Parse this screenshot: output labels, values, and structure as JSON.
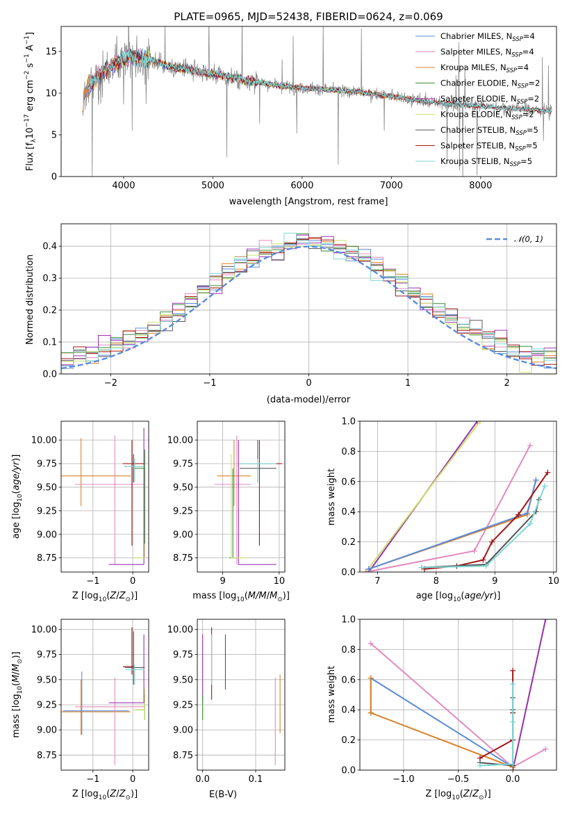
{
  "colors": {
    "chabrier_miles": "#5b8bd9",
    "salpeter_miles": "#e589bd",
    "kroupa_miles": "#d9822b",
    "chabrier_elodie": "#3a8a3a",
    "salpeter_elodie": "#9b30b0",
    "kroupa_elodie": "#c9e26a",
    "chabrier_stelib": "#555555",
    "salpeter_stelib": "#a11515",
    "kroupa_stelib": "#7fd6d6",
    "data": "#888888",
    "normal": "#5b8bd9"
  },
  "chart_data": [
    {
      "id": "spectrum",
      "type": "line",
      "title": "PLATE=0965, MJD=52438, FIBERID=0624, z=0.069",
      "xlabel": "wavelength [Angstrom, rest frame]",
      "ylabel_parts": [
        "Flux [f",
        "λ",
        "10",
        "−17",
        " erg cm",
        "−2",
        " s",
        "−1",
        " A",
        "−1",
        "]"
      ],
      "xlim": [
        3300,
        8850
      ],
      "ylim": [
        0,
        18
      ],
      "xticks": [
        4000,
        5000,
        6000,
        7000,
        8000
      ],
      "yticks": [
        0,
        5,
        10,
        15
      ],
      "legend": [
        {
          "name": "Chabrier MILES, N",
          "sub": "SSP",
          "tail": "=4",
          "color_key": "chabrier_miles"
        },
        {
          "name": "Salpeter MILES, N",
          "sub": "SSP",
          "tail": "=4",
          "color_key": "salpeter_miles"
        },
        {
          "name": "Kroupa MILES, N",
          "sub": "SSP",
          "tail": "=4",
          "color_key": "kroupa_miles"
        },
        {
          "name": "Chabrier ELODIE, N",
          "sub": "SSP",
          "tail": "=2",
          "color_key": "chabrier_elodie"
        },
        {
          "name": "Salpeter ELODIE, N",
          "sub": "SSP",
          "tail": "=2",
          "color_key": "salpeter_elodie"
        },
        {
          "name": "Kroupa ELODIE, N",
          "sub": "SSP",
          "tail": "=2",
          "color_key": "kroupa_elodie"
        },
        {
          "name": "Chabrier STELIB, N",
          "sub": "SSP",
          "tail": "=5",
          "color_key": "chabrier_stelib"
        },
        {
          "name": "Salpeter STELIB, N",
          "sub": "SSP",
          "tail": "=5",
          "color_key": "salpeter_stelib"
        },
        {
          "name": "Kroupa STELIB, N",
          "sub": "SSP",
          "tail": "=5",
          "color_key": "kroupa_stelib"
        }
      ],
      "continuum_anchors": {
        "x": [
          3550,
          3700,
          3900,
          4050,
          4300,
          4600,
          5000,
          5400,
          5800,
          6200,
          6600,
          7000,
          7400,
          7800,
          8200,
          8600,
          8800
        ],
        "y": [
          9.8,
          12.0,
          13.5,
          14.5,
          14.0,
          13.0,
          12.3,
          11.5,
          10.8,
          10.5,
          10.2,
          9.6,
          9.0,
          8.6,
          8.3,
          8.0,
          7.8
        ]
      }
    },
    {
      "id": "residuals",
      "type": "histogram",
      "xlabel": "(data-model)/error",
      "ylabel": "Normed distribution",
      "xlim": [
        -2.5,
        2.5
      ],
      "ylim": [
        0,
        0.47
      ],
      "xticks": [
        -2,
        -1,
        0,
        1,
        2
      ],
      "yticks": [
        0.0,
        0.1,
        0.2,
        0.3,
        0.4
      ],
      "legend": [
        {
          "name": "𝒩(0, 1)",
          "color_key": "normal",
          "style": "dashed"
        }
      ],
      "bins": 40
    },
    {
      "id": "age_vs_Z",
      "type": "errorbar",
      "xlabel_parts": [
        "Z [log",
        "10",
        "(Z/Z",
        "⊙",
        ")]"
      ],
      "ylabel_parts": [
        "age  [log",
        "10",
        "(age/yr)]"
      ],
      "xlim": [
        -1.8,
        0.4
      ],
      "ylim": [
        8.6,
        10.2
      ],
      "xticks": [
        -1,
        0
      ],
      "yticks": [
        8.75,
        9.0,
        9.25,
        9.5,
        9.75,
        10.0
      ],
      "points": [
        {
          "c": "kroupa_miles",
          "x": -1.3,
          "xlo": -1.8,
          "xhi": -0.05,
          "y": 9.62,
          "ylo": 9.3,
          "yhi": 10.02
        },
        {
          "c": "salpeter_miles",
          "x": -0.45,
          "xlo": -1.45,
          "xhi": 0.3,
          "y": 9.53,
          "ylo": 8.68,
          "yhi": 10.05
        },
        {
          "c": "salpeter_elodie",
          "x": 0.28,
          "xlo": -0.6,
          "xhi": 0.28,
          "y": 8.68,
          "ylo": 8.68,
          "yhi": 10.13
        },
        {
          "c": "salpeter_stelib",
          "x": -0.02,
          "xlo": -0.25,
          "xhi": 0.3,
          "y": 9.75,
          "ylo": 8.88,
          "yhi": 10.0
        },
        {
          "c": "chabrier_stelib",
          "x": 0.02,
          "xlo": -0.2,
          "xhi": 0.3,
          "y": 9.72,
          "ylo": 9.55,
          "yhi": 9.85
        },
        {
          "c": "kroupa_stelib",
          "x": 0.05,
          "xlo": -0.18,
          "xhi": 0.3,
          "y": 9.72,
          "ylo": 9.55,
          "yhi": 9.8
        },
        {
          "c": "kroupa_elodie",
          "x": 0.3,
          "xlo": 0.0,
          "xhi": 0.3,
          "y": 8.75,
          "ylo": 8.75,
          "yhi": 9.85
        },
        {
          "c": "chabrier_elodie",
          "x": 0.3,
          "xlo": 0.05,
          "xhi": 0.3,
          "y": 9.7,
          "ylo": 8.9,
          "yhi": 9.9
        }
      ]
    },
    {
      "id": "age_vs_mass",
      "type": "errorbar",
      "xlabel_parts": [
        "mass [log",
        "10",
        "(M/M",
        "⊙",
        ")]"
      ],
      "ylabel_parts": [],
      "xlim": [
        8.55,
        10.1
      ],
      "ylim": [
        8.6,
        10.2
      ],
      "xticks": [
        9,
        10
      ],
      "yticks": [
        8.75,
        9.0,
        9.25,
        9.5,
        9.75,
        10.0
      ],
      "points": [
        {
          "c": "kroupa_miles",
          "x": 9.2,
          "xlo": 8.9,
          "xhi": 9.5,
          "y": 9.62,
          "ylo": 9.3,
          "yhi": 10.0
        },
        {
          "c": "salpeter_miles",
          "x": 9.25,
          "xlo": 8.85,
          "xhi": 9.5,
          "y": 9.53,
          "ylo": 8.68,
          "yhi": 10.05
        },
        {
          "c": "salpeter_elodie",
          "x": 9.28,
          "xlo": 9.28,
          "xhi": 9.95,
          "y": 8.68,
          "ylo": 8.68,
          "yhi": 10.0
        },
        {
          "c": "chabrier_elodie",
          "x": 9.18,
          "xlo": 9.12,
          "xhi": 9.25,
          "y": 8.75,
          "ylo": 8.75,
          "yhi": 9.7
        },
        {
          "c": "kroupa_elodie",
          "x": 9.15,
          "xlo": 9.15,
          "xhi": 9.4,
          "y": 8.75,
          "ylo": 8.75,
          "yhi": 9.85
        },
        {
          "c": "salpeter_stelib",
          "x": 9.65,
          "xlo": 9.3,
          "xhi": 10.05,
          "y": 9.75,
          "ylo": 8.88,
          "yhi": 10.0
        },
        {
          "c": "chabrier_stelib",
          "x": 9.62,
          "xlo": 9.3,
          "xhi": 9.95,
          "y": 9.7,
          "ylo": 9.55,
          "yhi": 10.0
        },
        {
          "c": "kroupa_stelib",
          "x": 9.62,
          "xlo": 9.3,
          "xhi": 9.95,
          "y": 9.75,
          "ylo": 9.55,
          "yhi": 9.8
        }
      ]
    },
    {
      "id": "weight_vs_age",
      "type": "line",
      "xlabel_parts": [
        "age  [log",
        "10",
        "(age/yr)]"
      ],
      "ylabel": "mass weight",
      "xlim": [
        6.7,
        10.05
      ],
      "ylim": [
        0,
        1.0
      ],
      "xticks": [
        7,
        8,
        9,
        10
      ],
      "yticks": [
        0.0,
        0.2,
        0.4,
        0.6,
        0.8,
        1.0
      ],
      "series": [
        {
          "c": "salpeter_elodie",
          "x": [
            6.85,
            8.7
          ],
          "y": [
            0.0,
            1.0
          ]
        },
        {
          "c": "kroupa_elodie",
          "x": [
            6.8,
            8.75
          ],
          "y": [
            0.0,
            1.0
          ]
        },
        {
          "c": "salpeter_miles",
          "x": [
            6.8,
            8.65,
            9.6
          ],
          "y": [
            0.0,
            0.14,
            0.84
          ]
        },
        {
          "c": "kroupa_miles",
          "x": [
            6.85,
            9.55,
            9.7
          ],
          "y": [
            0.02,
            0.38,
            0.61
          ]
        },
        {
          "c": "chabrier_miles",
          "x": [
            6.85,
            9.55,
            9.7
          ],
          "y": [
            0.02,
            0.39,
            0.61
          ]
        },
        {
          "c": "salpeter_stelib",
          "x": [
            7.8,
            8.35,
            8.8,
            8.95,
            9.4,
            9.9
          ],
          "y": [
            0.02,
            0.04,
            0.08,
            0.2,
            0.38,
            0.66
          ]
        },
        {
          "c": "chabrier_stelib",
          "x": [
            7.75,
            8.85,
            9.7,
            9.75
          ],
          "y": [
            0.03,
            0.05,
            0.4,
            0.48
          ]
        },
        {
          "c": "kroupa_stelib",
          "x": [
            7.75,
            8.85,
            9.6,
            9.85
          ],
          "y": [
            0.03,
            0.04,
            0.32,
            0.57
          ]
        }
      ]
    },
    {
      "id": "mass_vs_Z",
      "type": "errorbar",
      "xlabel_parts": [
        "Z [log",
        "10",
        "(Z/Z",
        "⊙",
        ")]"
      ],
      "ylabel_parts": [
        "mass [log",
        "10",
        "(M/M",
        "⊙",
        ")]"
      ],
      "xlim": [
        -1.8,
        0.4
      ],
      "ylim": [
        8.6,
        10.1
      ],
      "xticks": [
        -1,
        0
      ],
      "yticks": [
        8.75,
        9.0,
        9.25,
        9.5,
        9.75,
        10.0
      ],
      "points": [
        {
          "c": "kroupa_miles",
          "x": -1.3,
          "xlo": -1.8,
          "xhi": -0.05,
          "y": 9.18,
          "ylo": 8.95,
          "yhi": 9.5
        },
        {
          "c": "chabrier_miles",
          "x": -1.28,
          "xlo": -1.75,
          "xhi": -0.1,
          "y": 9.19,
          "ylo": 8.95,
          "yhi": 9.58
        },
        {
          "c": "salpeter_miles",
          "x": -0.45,
          "xlo": -1.45,
          "xhi": 0.3,
          "y": 9.23,
          "ylo": 8.65,
          "yhi": 9.52
        },
        {
          "c": "salpeter_elodie",
          "x": 0.28,
          "xlo": -0.6,
          "xhi": 0.28,
          "y": 9.27,
          "ylo": 9.27,
          "yhi": 9.95
        },
        {
          "c": "salpeter_stelib",
          "x": -0.02,
          "xlo": -0.25,
          "xhi": 0.02,
          "y": 9.63,
          "ylo": 9.55,
          "yhi": 10.02
        },
        {
          "c": "chabrier_stelib",
          "x": 0.02,
          "xlo": -0.2,
          "xhi": 0.3,
          "y": 9.62,
          "ylo": 9.45,
          "yhi": 9.98
        },
        {
          "c": "kroupa_stelib",
          "x": 0.05,
          "xlo": -0.18,
          "xhi": 0.3,
          "y": 9.6,
          "ylo": 9.45,
          "yhi": 9.65
        },
        {
          "c": "chabrier_elodie",
          "x": 0.3,
          "xlo": 0.05,
          "xhi": 0.3,
          "y": 9.2,
          "ylo": 9.1,
          "yhi": 9.35
        },
        {
          "c": "kroupa_elodie",
          "x": 0.3,
          "xlo": 0.0,
          "xhi": 0.3,
          "y": 9.2,
          "ylo": 9.1,
          "yhi": 9.42
        }
      ]
    },
    {
      "id": "mass_vs_ebv",
      "type": "errorbar",
      "xlabel": "E(B-V)",
      "ylabel_parts": [],
      "xlim": [
        -0.01,
        0.155
      ],
      "ylim": [
        8.6,
        10.1
      ],
      "xticks": [
        0.0,
        0.1
      ],
      "tick_labels": [
        "0.0",
        "0.1"
      ],
      "yticks": [
        8.75,
        9.0,
        9.25,
        9.5,
        9.75,
        10.0
      ],
      "points": [
        {
          "c": "kroupa_elodie",
          "x": 0.0,
          "ylo": 9.1,
          "yhi": 9.42
        },
        {
          "c": "salpeter_elodie",
          "x": 0.0,
          "ylo": 9.27,
          "yhi": 9.95
        },
        {
          "c": "chabrier_elodie",
          "x": 0.0,
          "ylo": 9.1,
          "yhi": 9.35
        },
        {
          "c": "salpeter_stelib",
          "x": 0.017,
          "ylo": 9.3,
          "yhi": 10.02
        },
        {
          "c": "kroupa_stelib",
          "x": 0.017,
          "ylo": 9.45,
          "yhi": 9.95
        },
        {
          "c": "chabrier_stelib",
          "x": 0.043,
          "ylo": 9.4,
          "yhi": 9.95
        },
        {
          "c": "salpeter_miles",
          "x": 0.137,
          "ylo": 8.65,
          "yhi": 9.52
        },
        {
          "c": "kroupa_miles",
          "x": 0.146,
          "ylo": 8.97,
          "yhi": 9.55
        }
      ]
    },
    {
      "id": "weight_vs_Z",
      "type": "line",
      "xlabel_parts": [
        "Z [log",
        "10",
        "(Z/Z",
        "⊙",
        ")]"
      ],
      "ylabel": "mass weight",
      "xlim": [
        -1.4,
        0.4
      ],
      "ylim": [
        0,
        1.0
      ],
      "xticks": [
        -1.0,
        -0.5,
        0.0
      ],
      "tick_labels": [
        "−1.0",
        "−0.5",
        "0.0"
      ],
      "yticks": [
        0.0,
        0.2,
        0.4,
        0.6,
        0.8,
        1.0
      ],
      "series": [
        {
          "c": "kroupa_elodie",
          "x": [
            0.0,
            0.3
          ],
          "y": [
            0.0,
            1.0
          ]
        },
        {
          "c": "salpeter_elodie",
          "x": [
            0.0,
            0.3
          ],
          "y": [
            0.0,
            1.0
          ]
        },
        {
          "c": "salpeter_miles",
          "x": [
            -1.3,
            0.0,
            0.3
          ],
          "y": [
            0.84,
            0.02,
            0.14
          ]
        },
        {
          "c": "chabrier_miles",
          "x": [
            -1.3,
            -1.3,
            0.0
          ],
          "y": [
            0.38,
            0.61,
            0.02
          ]
        },
        {
          "c": "kroupa_miles",
          "x": [
            -1.3,
            -1.3,
            0.0
          ],
          "y": [
            0.61,
            0.38,
            0.02
          ]
        },
        {
          "c": "salpeter_stelib",
          "x": [
            -0.3,
            0.0,
            0.0,
            0.0
          ],
          "y": [
            0.08,
            0.2,
            0.38,
            0.66
          ]
        },
        {
          "c": "chabrier_stelib",
          "x": [
            -0.3,
            0.0,
            0.0,
            0.0
          ],
          "y": [
            0.05,
            0.03,
            0.4,
            0.48
          ]
        },
        {
          "c": "kroupa_stelib",
          "x": [
            -0.3,
            0.0,
            0.0,
            0.0
          ],
          "y": [
            0.03,
            0.04,
            0.32,
            0.57
          ]
        }
      ]
    }
  ]
}
